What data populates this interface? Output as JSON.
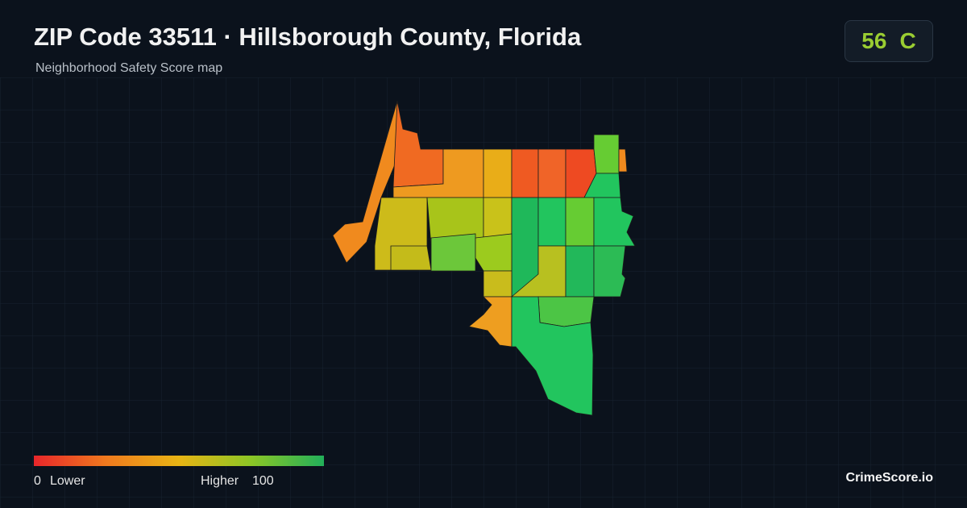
{
  "header": {
    "title": "ZIP Code 33511 · Hillsborough County, Florida",
    "subtitle": "Neighborhood Safety Score map"
  },
  "score": {
    "value": 56,
    "grade": "C"
  },
  "legend": {
    "min": 0,
    "min_label": "Lower",
    "max_label": "Higher",
    "max": 100
  },
  "brand": "CrimeScore.io"
}
